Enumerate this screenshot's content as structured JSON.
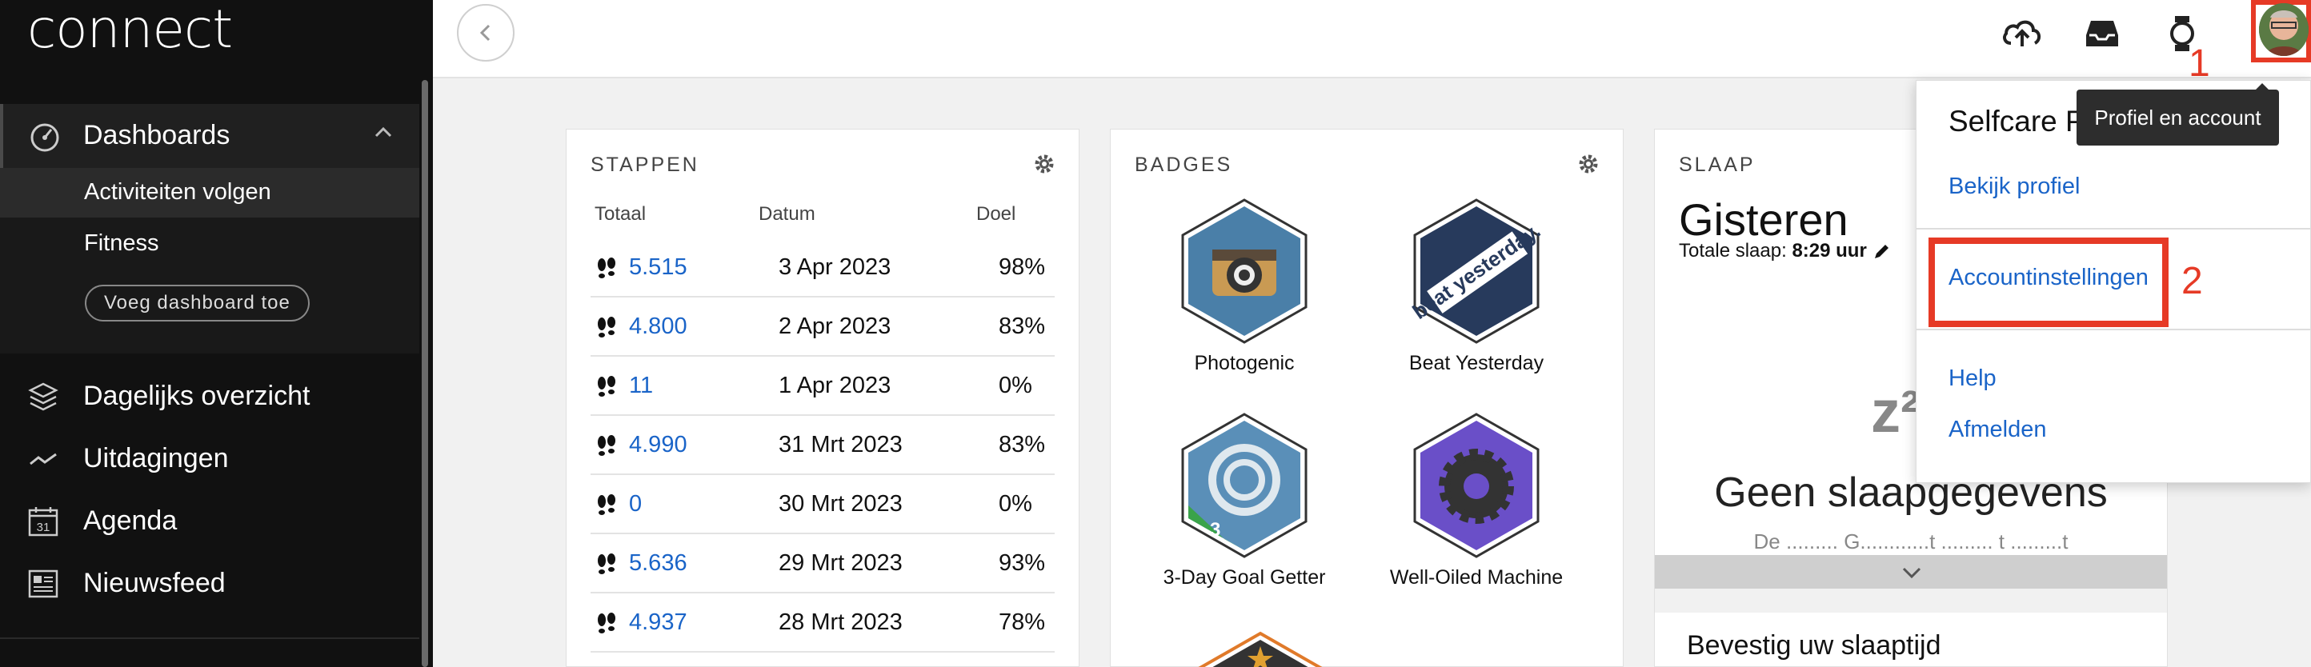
{
  "sidebar": {
    "logo": "connect",
    "dashboards_label": "Dashboards",
    "sub_items": [
      "Activiteiten volgen",
      "Fitness"
    ],
    "add_dashboard_label": "Voeg dashboard toe",
    "items": [
      {
        "label": "Dagelijks overzicht",
        "icon": "layers-icon"
      },
      {
        "label": "Uitdagingen",
        "icon": "trend-icon"
      },
      {
        "label": "Agenda",
        "icon": "calendar-icon",
        "calendar_day": "31"
      },
      {
        "label": "Nieuwsfeed",
        "icon": "newsfeed-icon"
      }
    ]
  },
  "topbar": {
    "icons": [
      "back-chevron-icon",
      "upload-cloud-icon",
      "inbox-icon",
      "watch-icon",
      "avatar"
    ]
  },
  "annotations": {
    "one": "1",
    "two": "2"
  },
  "tooltip": "Profiel en account",
  "dropdown": {
    "title": "Selfcare P",
    "view_profile": "Bekijk profiel",
    "account_settings": "Accountinstellingen",
    "help": "Help",
    "logout": "Afmelden"
  },
  "steps_card": {
    "title": "STAPPEN",
    "headers": {
      "total": "Totaal",
      "date": "Datum",
      "goal": "Doel"
    },
    "rows": [
      {
        "value": "5.515",
        "date": "3 Apr 2023",
        "goal": "98%"
      },
      {
        "value": "4.800",
        "date": "2 Apr 2023",
        "goal": "83%"
      },
      {
        "value": "11",
        "date": "1 Apr 2023",
        "goal": "0%"
      },
      {
        "value": "4.990",
        "date": "31 Mrt 2023",
        "goal": "83%"
      },
      {
        "value": "0",
        "date": "30 Mrt 2023",
        "goal": "0%"
      },
      {
        "value": "5.636",
        "date": "29 Mrt 2023",
        "goal": "93%"
      },
      {
        "value": "4.937",
        "date": "28 Mrt 2023",
        "goal": "78%"
      }
    ]
  },
  "badges_card": {
    "title": "BADGES",
    "badges": [
      {
        "name": "Photogenic",
        "icon": "camera-badge-icon"
      },
      {
        "name": "Beat Yesterday",
        "icon": "beat-yesterday-badge-icon",
        "badge_text": "beat yesterday."
      },
      {
        "name": "3-Day Goal Getter",
        "icon": "goal-getter-badge-icon",
        "badge_text": "3"
      },
      {
        "name": "Well-Oiled Machine",
        "icon": "gear-badge-icon"
      }
    ]
  },
  "sleep_card": {
    "title": "SLAAP",
    "day": "Gisteren",
    "total_label": "Totale slaap:",
    "total_value": "8:29 uur",
    "sleep_glyph": "z²",
    "no_data": "Geen slaapgegevens",
    "faded_text": "De ......... G............t ......... t .........t",
    "confirm": "Bevestig uw slaaptijd"
  },
  "colors": {
    "accent": "#1a64c8",
    "annotation": "#e63a26",
    "sidebar": "#111111"
  }
}
